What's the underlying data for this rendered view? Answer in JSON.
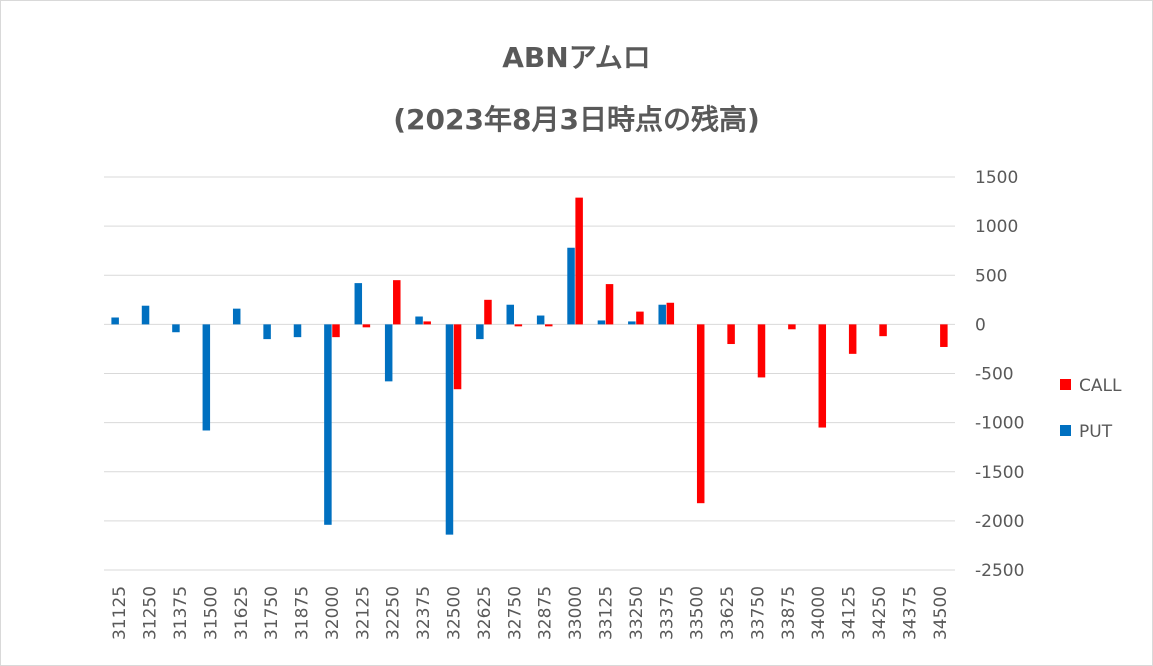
{
  "chart_data": {
    "type": "bar",
    "title": "ABNアムロ",
    "subtitle": "(2023年8月3日時点の残高)",
    "categories": [
      "31125",
      "31250",
      "31375",
      "31500",
      "31625",
      "31750",
      "31875",
      "32000",
      "32125",
      "32250",
      "32375",
      "32500",
      "32625",
      "32750",
      "32875",
      "33000",
      "33125",
      "33250",
      "33375",
      "33500",
      "33625",
      "33750",
      "33875",
      "34000",
      "34125",
      "34250",
      "34375",
      "34500"
    ],
    "series": [
      {
        "name": "PUT",
        "color": "#0070C0",
        "values": [
          70,
          190,
          -80,
          -1080,
          160,
          -150,
          -130,
          -2040,
          420,
          -580,
          80,
          -2140,
          -150,
          200,
          90,
          780,
          40,
          30,
          200,
          0,
          0,
          0,
          0,
          0,
          0,
          0,
          0,
          0
        ]
      },
      {
        "name": "CALL",
        "color": "#FF0000",
        "values": [
          0,
          0,
          0,
          0,
          0,
          0,
          0,
          -130,
          -30,
          450,
          30,
          -660,
          250,
          -20,
          -20,
          1290,
          410,
          130,
          220,
          -1820,
          -200,
          -540,
          -50,
          -1050,
          -300,
          -120,
          0,
          -230
        ]
      }
    ],
    "y_ticks": [
      "1500",
      "1000",
      "500",
      "0",
      "-500",
      "-1000",
      "-1500",
      "-2000",
      "-2500"
    ],
    "ylim": [
      -2500,
      1500
    ],
    "grid": true,
    "legend": [
      "CALL",
      "PUT"
    ],
    "legend_position": "right"
  }
}
